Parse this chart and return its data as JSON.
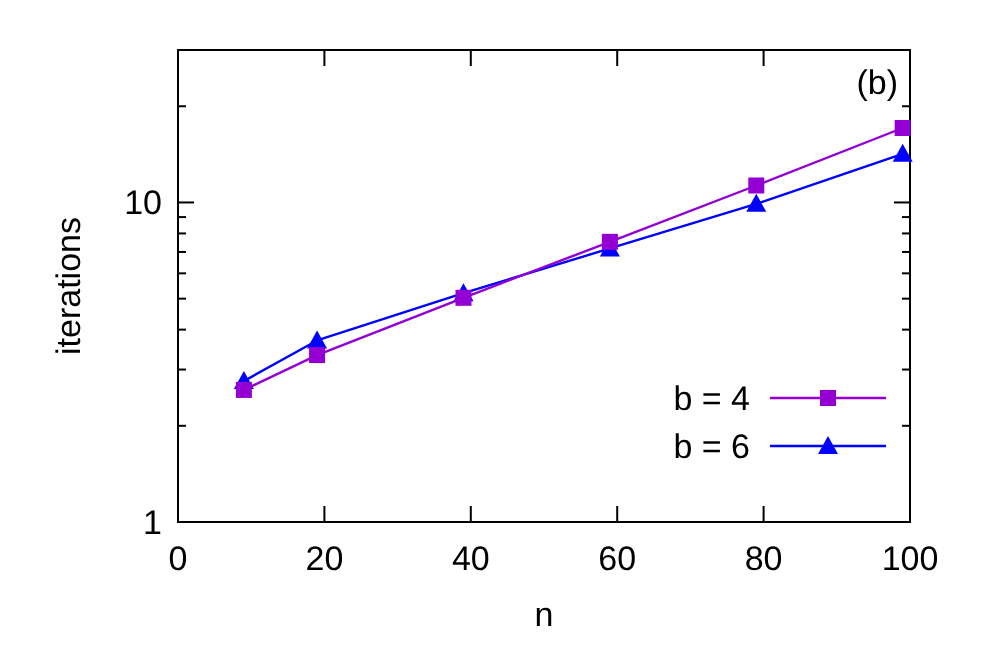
{
  "chart_data": {
    "type": "line",
    "xlabel": "n",
    "ylabel": "iterations",
    "annotations": [
      "(b)"
    ],
    "log": "y",
    "grid": false,
    "legend": "bottom right",
    "line_style": "solid",
    "xlim": [
      0,
      100
    ],
    "xticks": [
      0,
      20,
      40,
      60,
      80,
      100
    ],
    "ylim": [
      1,
      30
    ],
    "yticks": [
      1,
      {
        "value": 2,
        "label": null
      },
      {
        "value": 3,
        "label": null
      },
      {
        "value": 4,
        "label": null
      },
      {
        "value": 5,
        "label": null
      },
      {
        "value": 6,
        "label": null
      },
      {
        "value": 7,
        "label": null
      },
      {
        "value": 8,
        "label": null
      },
      {
        "value": 9,
        "label": null
      },
      10,
      {
        "value": 20,
        "label": null
      },
      {
        "value": 30,
        "label": null
      }
    ],
    "x": [
      9,
      19,
      39,
      59,
      79,
      99
    ],
    "series": [
      {
        "name": "b = 4",
        "color": "#9400d3",
        "marker": "square",
        "values": [
          2.59,
          3.33,
          5.03,
          7.53,
          11.3,
          17.1
        ]
      },
      {
        "name": "b = 6",
        "color": "#0000ff",
        "marker": "triangle",
        "values": [
          2.76,
          3.7,
          5.2,
          7.18,
          9.9,
          14.2
        ]
      }
    ]
  }
}
